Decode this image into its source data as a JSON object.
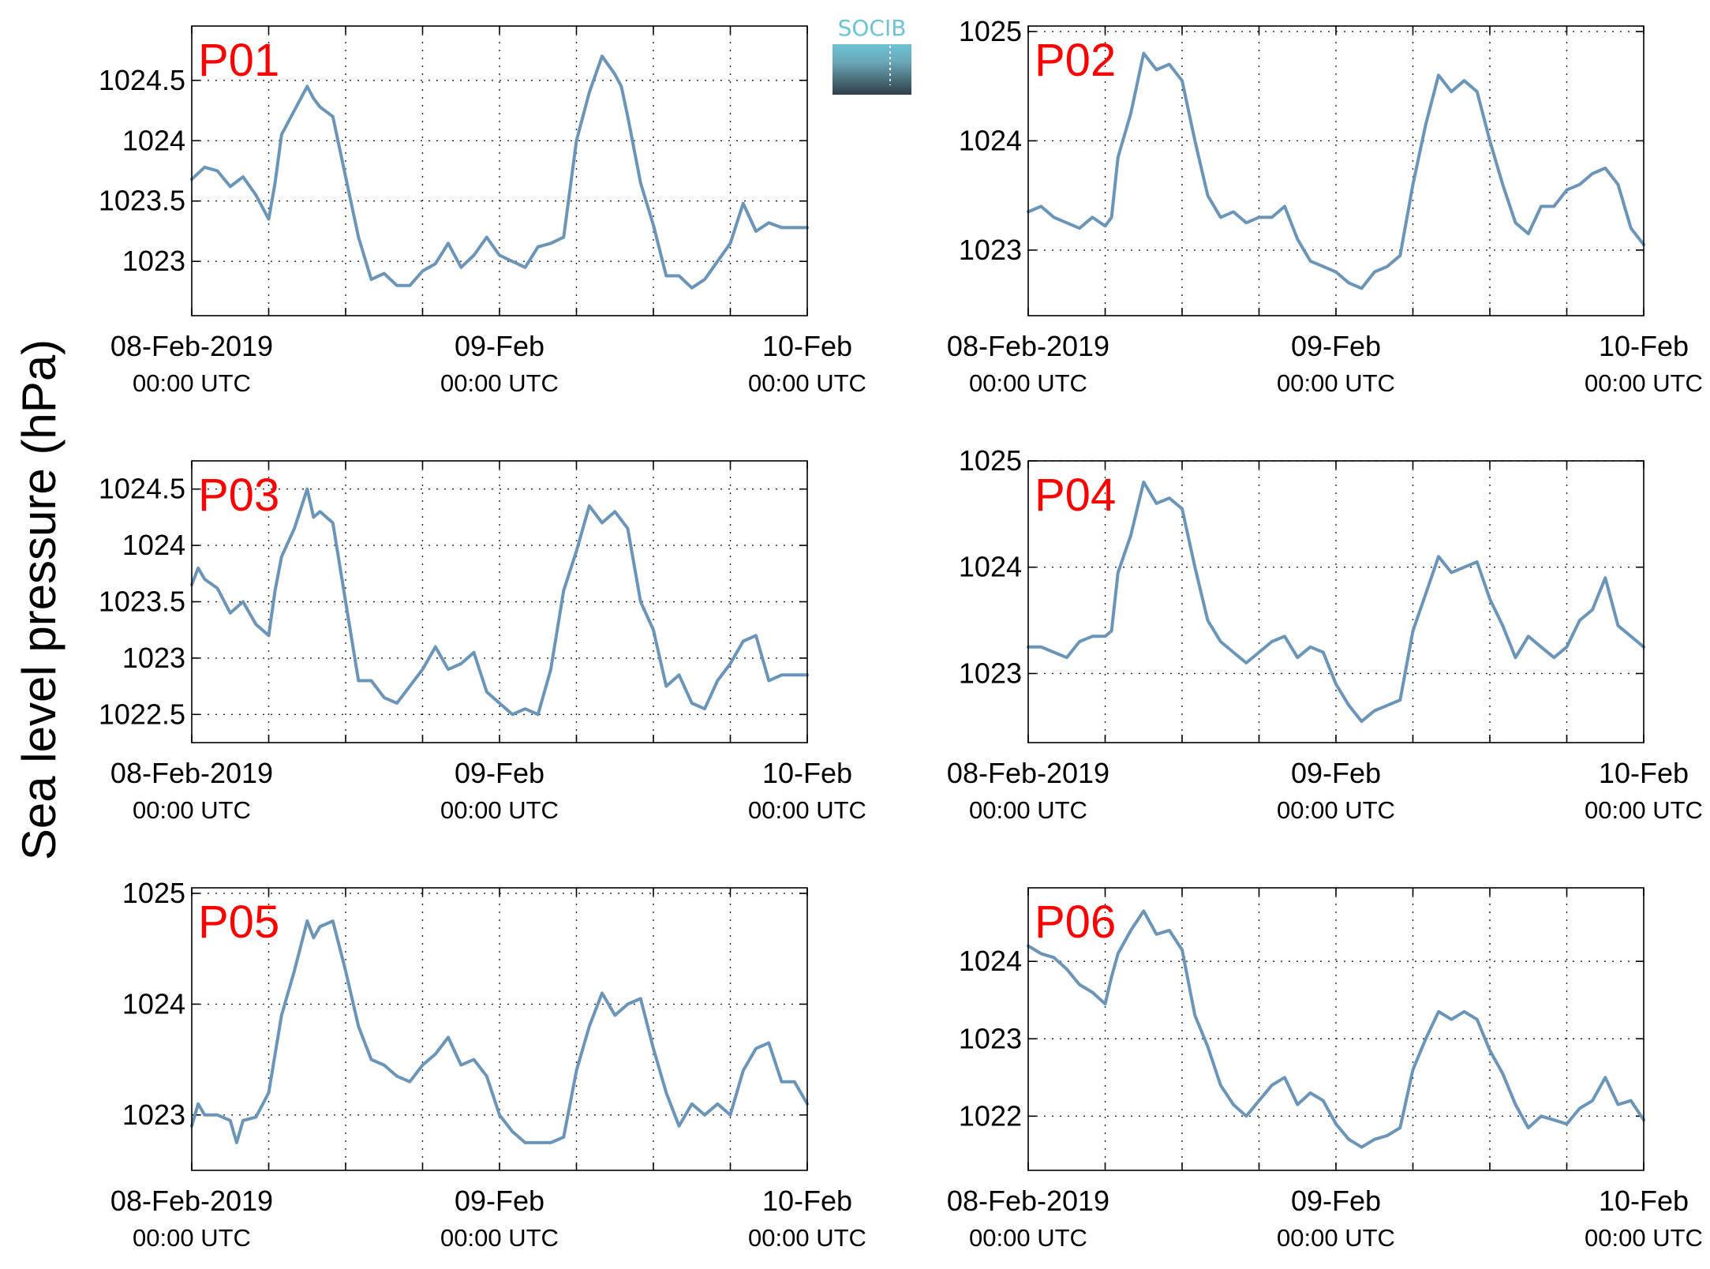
{
  "figure": {
    "ylabel": "Sea level pressure (hPa)",
    "logo_text": "SOCIB",
    "colors": {
      "series": "#6a95b8",
      "panel_label": "#ff0000",
      "logo_top": "#6cc3d6",
      "logo_bottom": "#2e3e48"
    }
  },
  "chart_data": [
    {
      "type": "line",
      "name": "P01",
      "xlim": [
        0,
        48
      ],
      "ylim": [
        1022.55,
        1024.95
      ],
      "yticks": [
        1023,
        1023.5,
        1024,
        1024.5
      ],
      "ytick_labels": [
        "1023",
        "1023.5",
        "1024",
        "1024.5"
      ],
      "xtick_labels": [
        "08-Feb-2019",
        "09-Feb",
        "10-Feb"
      ],
      "xtick_sublabels": [
        "00:00 UTC",
        "00:00 UTC",
        "00:00 UTC"
      ],
      "x": [
        0,
        1,
        2,
        3,
        4,
        5,
        6,
        6.5,
        7,
        8,
        9,
        9.5,
        10,
        11,
        12,
        13,
        14,
        15,
        16,
        17,
        18,
        19,
        20,
        21,
        22,
        23,
        24,
        25,
        26,
        27,
        28,
        29,
        30,
        31,
        32,
        33,
        33.5,
        34,
        35,
        36,
        37,
        38,
        39,
        40,
        41,
        42,
        43,
        44,
        45,
        46,
        47,
        48
      ],
      "values": [
        1023.68,
        1023.78,
        1023.75,
        1023.62,
        1023.7,
        1023.55,
        1023.35,
        1023.65,
        1024.05,
        1024.25,
        1024.45,
        1024.35,
        1024.28,
        1024.2,
        1023.7,
        1023.2,
        1022.85,
        1022.9,
        1022.8,
        1022.8,
        1022.92,
        1022.98,
        1023.15,
        1022.95,
        1023.05,
        1023.2,
        1023.05,
        1023.0,
        1022.95,
        1023.12,
        1023.15,
        1023.2,
        1024.0,
        1024.4,
        1024.7,
        1024.55,
        1024.45,
        1024.2,
        1023.65,
        1023.3,
        1022.88,
        1022.88,
        1022.78,
        1022.85,
        1023.0,
        1023.15,
        1023.48,
        1023.25,
        1023.32,
        1023.28,
        1023.28,
        1023.28
      ]
    },
    {
      "type": "line",
      "name": "P02",
      "xlim": [
        0,
        48
      ],
      "ylim": [
        1022.4,
        1025.05
      ],
      "yticks": [
        1023,
        1024,
        1025
      ],
      "ytick_labels": [
        "1023",
        "1024",
        "1025"
      ],
      "xtick_labels": [
        "08-Feb-2019",
        "09-Feb",
        "10-Feb"
      ],
      "xtick_sublabels": [
        "00:00 UTC",
        "00:00 UTC",
        "00:00 UTC"
      ],
      "x": [
        0,
        1,
        2,
        3,
        4,
        5,
        6,
        6.5,
        7,
        8,
        9,
        10,
        11,
        12,
        13,
        14,
        15,
        16,
        17,
        18,
        19,
        20,
        21,
        22,
        23,
        24,
        25,
        26,
        27,
        28,
        29,
        30,
        31,
        32,
        33,
        34,
        35,
        36,
        37,
        38,
        39,
        40,
        41,
        42,
        43,
        44,
        45,
        46,
        47,
        48
      ],
      "values": [
        1023.35,
        1023.4,
        1023.3,
        1023.25,
        1023.2,
        1023.3,
        1023.22,
        1023.3,
        1023.85,
        1024.25,
        1024.8,
        1024.65,
        1024.7,
        1024.55,
        1024.0,
        1023.5,
        1023.3,
        1023.35,
        1023.25,
        1023.3,
        1023.3,
        1023.4,
        1023.1,
        1022.9,
        1022.85,
        1022.8,
        1022.7,
        1022.65,
        1022.8,
        1022.85,
        1022.95,
        1023.6,
        1024.15,
        1024.6,
        1024.45,
        1024.55,
        1024.45,
        1024.0,
        1023.6,
        1023.25,
        1023.15,
        1023.4,
        1023.4,
        1023.55,
        1023.6,
        1023.7,
        1023.75,
        1023.6,
        1023.2,
        1023.05
      ]
    },
    {
      "type": "line",
      "name": "P03",
      "xlim": [
        0,
        48
      ],
      "ylim": [
        1022.25,
        1024.75
      ],
      "yticks": [
        1022.5,
        1023,
        1023.5,
        1024,
        1024.5
      ],
      "ytick_labels": [
        "1022.5",
        "1023",
        "1023.5",
        "1024",
        "1024.5"
      ],
      "xtick_labels": [
        "08-Feb-2019",
        "09-Feb",
        "10-Feb"
      ],
      "xtick_sublabels": [
        "00:00 UTC",
        "00:00 UTC",
        "00:00 UTC"
      ],
      "x": [
        0,
        0.5,
        1,
        2,
        3,
        4,
        5,
        6,
        6.5,
        7,
        8,
        9,
        9.5,
        10,
        11,
        12,
        13,
        14,
        15,
        16,
        17,
        18,
        19,
        20,
        21,
        22,
        23,
        24,
        25,
        26,
        27,
        28,
        29,
        30,
        31,
        32,
        33,
        34,
        35,
        36,
        37,
        38,
        39,
        40,
        41,
        42,
        43,
        44,
        45,
        46,
        47,
        48
      ],
      "values": [
        1023.65,
        1023.8,
        1023.7,
        1023.62,
        1023.4,
        1023.5,
        1023.3,
        1023.2,
        1023.6,
        1023.9,
        1024.15,
        1024.5,
        1024.25,
        1024.3,
        1024.2,
        1023.5,
        1022.8,
        1022.8,
        1022.65,
        1022.6,
        1022.75,
        1022.9,
        1023.1,
        1022.9,
        1022.95,
        1023.05,
        1022.7,
        1022.6,
        1022.5,
        1022.55,
        1022.5,
        1022.9,
        1023.6,
        1023.95,
        1024.35,
        1024.2,
        1024.3,
        1024.15,
        1023.5,
        1023.25,
        1022.75,
        1022.85,
        1022.6,
        1022.55,
        1022.8,
        1022.95,
        1023.15,
        1023.2,
        1022.8,
        1022.85,
        1022.85,
        1022.85
      ]
    },
    {
      "type": "line",
      "name": "P04",
      "xlim": [
        0,
        48
      ],
      "ylim": [
        1022.35,
        1025.0
      ],
      "yticks": [
        1023,
        1024,
        1025
      ],
      "ytick_labels": [
        "1023",
        "1024",
        "1025"
      ],
      "xtick_labels": [
        "08-Feb-2019",
        "09-Feb",
        "10-Feb"
      ],
      "xtick_sublabels": [
        "00:00 UTC",
        "00:00 UTC",
        "00:00 UTC"
      ],
      "x": [
        0,
        1,
        2,
        3,
        4,
        5,
        6,
        6.5,
        7,
        8,
        9,
        10,
        11,
        12,
        13,
        14,
        15,
        16,
        17,
        18,
        19,
        20,
        21,
        22,
        23,
        24,
        25,
        26,
        27,
        28,
        29,
        30,
        31,
        32,
        33,
        34,
        35,
        36,
        37,
        38,
        39,
        40,
        41,
        42,
        43,
        44,
        45,
        46,
        47,
        48
      ],
      "values": [
        1023.25,
        1023.25,
        1023.2,
        1023.15,
        1023.3,
        1023.35,
        1023.35,
        1023.4,
        1023.95,
        1024.3,
        1024.8,
        1024.6,
        1024.65,
        1024.55,
        1024.0,
        1023.5,
        1023.3,
        1023.2,
        1023.1,
        1023.2,
        1023.3,
        1023.35,
        1023.15,
        1023.25,
        1023.2,
        1022.9,
        1022.7,
        1022.55,
        1022.65,
        1022.7,
        1022.75,
        1023.4,
        1023.75,
        1024.1,
        1023.95,
        1024.0,
        1024.05,
        1023.7,
        1023.45,
        1023.15,
        1023.35,
        1023.25,
        1023.15,
        1023.25,
        1023.5,
        1023.6,
        1023.9,
        1023.45,
        1023.35,
        1023.25
      ]
    },
    {
      "type": "line",
      "name": "P05",
      "xlim": [
        0,
        48
      ],
      "ylim": [
        1022.5,
        1025.05
      ],
      "yticks": [
        1023,
        1024,
        1025
      ],
      "ytick_labels": [
        "1023",
        "1024",
        "1025"
      ],
      "xtick_labels": [
        "08-Feb-2019",
        "09-Feb",
        "10-Feb"
      ],
      "xtick_sublabels": [
        "00:00 UTC",
        "00:00 UTC",
        "00:00 UTC"
      ],
      "x": [
        0,
        0.5,
        1,
        2,
        3,
        3.5,
        4,
        5,
        6,
        7,
        8,
        9,
        9.5,
        10,
        11,
        12,
        13,
        14,
        15,
        16,
        17,
        18,
        19,
        20,
        21,
        22,
        23,
        24,
        25,
        26,
        27,
        28,
        29,
        30,
        31,
        32,
        33,
        34,
        35,
        36,
        37,
        38,
        39,
        40,
        41,
        42,
        43,
        44,
        45,
        46,
        47,
        48
      ],
      "values": [
        1022.9,
        1023.1,
        1023.0,
        1023.0,
        1022.95,
        1022.75,
        1022.95,
        1022.98,
        1023.2,
        1023.9,
        1024.3,
        1024.75,
        1024.6,
        1024.7,
        1024.75,
        1024.3,
        1023.8,
        1023.5,
        1023.45,
        1023.35,
        1023.3,
        1023.45,
        1023.55,
        1023.7,
        1023.45,
        1023.5,
        1023.35,
        1023.0,
        1022.85,
        1022.75,
        1022.75,
        1022.75,
        1022.8,
        1023.4,
        1023.8,
        1024.1,
        1023.9,
        1024.0,
        1024.05,
        1023.6,
        1023.2,
        1022.9,
        1023.1,
        1023.0,
        1023.1,
        1023.0,
        1023.4,
        1023.6,
        1023.65,
        1023.3,
        1023.3,
        1023.1
      ]
    },
    {
      "type": "line",
      "name": "P06",
      "xlim": [
        0,
        48
      ],
      "ylim": [
        1021.3,
        1024.95
      ],
      "yticks": [
        1022,
        1023,
        1024
      ],
      "ytick_labels": [
        "1022",
        "1023",
        "1024"
      ],
      "xtick_labels": [
        "08-Feb-2019",
        "09-Feb",
        "10-Feb"
      ],
      "xtick_sublabels": [
        "00:00 UTC",
        "00:00 UTC",
        "00:00 UTC"
      ],
      "x": [
        0,
        1,
        2,
        3,
        4,
        5,
        6,
        6.5,
        7,
        8,
        9,
        10,
        11,
        12,
        13,
        14,
        15,
        16,
        17,
        18,
        19,
        20,
        21,
        22,
        23,
        24,
        25,
        26,
        27,
        28,
        29,
        30,
        31,
        32,
        33,
        34,
        35,
        36,
        37,
        38,
        39,
        40,
        41,
        42,
        43,
        44,
        45,
        46,
        47,
        48
      ],
      "values": [
        1024.2,
        1024.1,
        1024.05,
        1023.9,
        1023.7,
        1023.6,
        1023.45,
        1023.8,
        1024.1,
        1024.4,
        1024.65,
        1024.35,
        1024.4,
        1024.15,
        1023.3,
        1022.9,
        1022.4,
        1022.15,
        1022.0,
        1022.2,
        1022.4,
        1022.5,
        1022.15,
        1022.3,
        1022.2,
        1021.9,
        1021.7,
        1021.6,
        1021.7,
        1021.75,
        1021.85,
        1022.6,
        1023.0,
        1023.35,
        1023.25,
        1023.35,
        1023.25,
        1022.85,
        1022.55,
        1022.15,
        1021.85,
        1022.0,
        1021.95,
        1021.9,
        1022.1,
        1022.2,
        1022.5,
        1022.15,
        1022.2,
        1021.95
      ]
    }
  ]
}
